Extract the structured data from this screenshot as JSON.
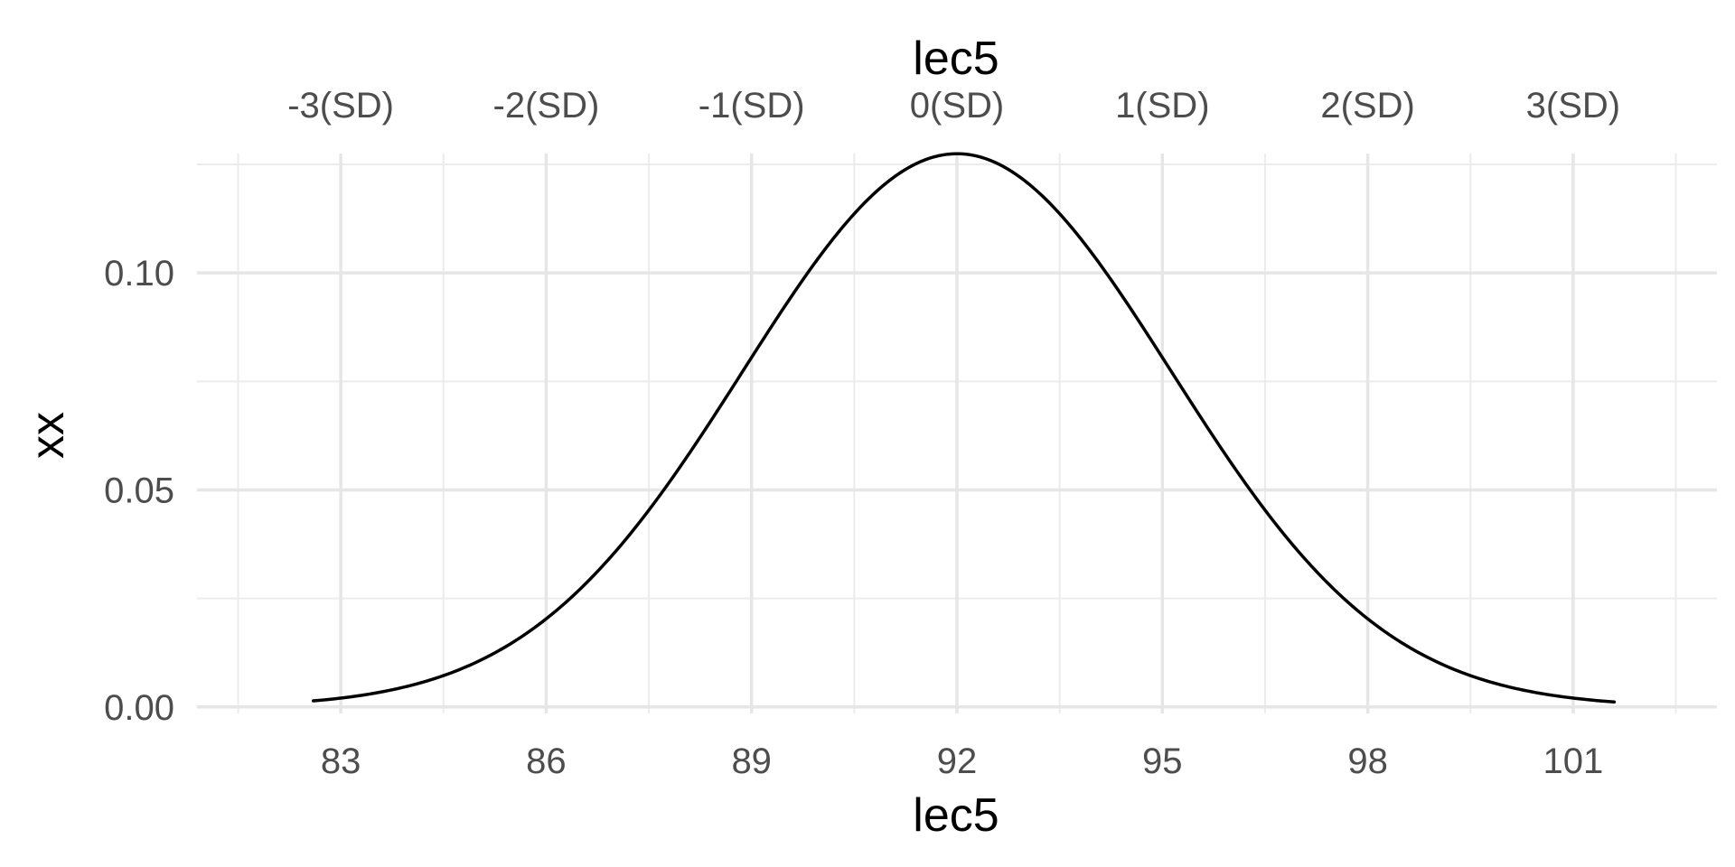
{
  "chart_data": {
    "type": "line",
    "title": "",
    "xlabel": "lec5",
    "ylabel": "xx",
    "secondary_xlabel": "lec5",
    "xlim": [
      80.9,
      103.1
    ],
    "ylim": [
      -0.0015,
      0.1275
    ],
    "x_ticks": [
      83,
      86,
      89,
      92,
      95,
      98,
      101
    ],
    "x_tick_labels": [
      "83",
      "86",
      "89",
      "92",
      "95",
      "98",
      "101"
    ],
    "secondary_x_ticks": [
      83,
      86,
      89,
      92,
      95,
      98,
      101
    ],
    "secondary_x_tick_labels": [
      "-3(SD)",
      "-2(SD)",
      "-1(SD)",
      "0(SD)",
      "1(SD)",
      "2(SD)",
      "3(SD)"
    ],
    "y_ticks": [
      0.0,
      0.05,
      0.1
    ],
    "y_tick_labels": [
      "0.00",
      "0.05",
      "0.10"
    ],
    "grid": true,
    "series": [
      {
        "distribution": "normal",
        "mean": 92,
        "sd": 3.13,
        "x_min": 82.6,
        "x_max": 101.6
      }
    ]
  }
}
